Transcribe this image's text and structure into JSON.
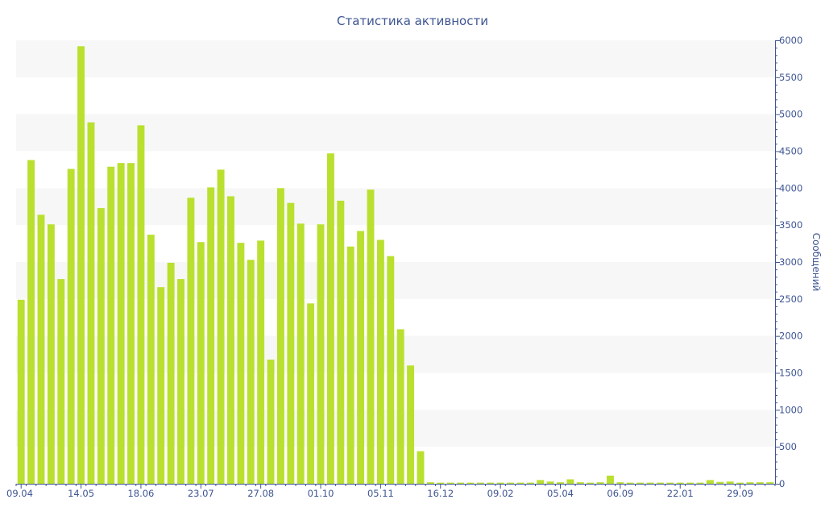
{
  "chart_data": {
    "type": "bar",
    "title": "Статистика активности",
    "ylabel": "Сообщений",
    "xlabel": "",
    "ylim": [
      0,
      6000
    ],
    "y_ticks": [
      0,
      500,
      1000,
      1500,
      2000,
      2500,
      3000,
      3500,
      4000,
      4500,
      5000,
      5500,
      6000
    ],
    "grid": true,
    "y_axis_side": "right",
    "bar_color": "#b9e02f",
    "band_color": "#f7f7f7",
    "text_color": "#3e5593",
    "axis_color": "#3e5593",
    "x_labels": [
      {
        "index": 0,
        "label": "09.04"
      },
      {
        "index": 6,
        "label": "14.05"
      },
      {
        "index": 12,
        "label": "18.06"
      },
      {
        "index": 18,
        "label": "23.07"
      },
      {
        "index": 24,
        "label": "27.08"
      },
      {
        "index": 30,
        "label": "01.10"
      },
      {
        "index": 36,
        "label": "05.11"
      },
      {
        "index": 42,
        "label": "16.12"
      },
      {
        "index": 48,
        "label": "09.02"
      },
      {
        "index": 54,
        "label": "05.04"
      },
      {
        "index": 60,
        "label": "06.09"
      },
      {
        "index": 66,
        "label": "22.01"
      },
      {
        "index": 72,
        "label": "29.09"
      }
    ],
    "values": [
      2490,
      4380,
      3640,
      3510,
      2770,
      4260,
      5920,
      4890,
      3730,
      4290,
      4340,
      4340,
      4850,
      3370,
      2660,
      2990,
      2770,
      3870,
      3270,
      4010,
      4250,
      3890,
      3260,
      3030,
      3290,
      1680,
      4000,
      3800,
      3520,
      2440,
      3510,
      4470,
      3830,
      3210,
      3420,
      3980,
      3300,
      3080,
      2090,
      1600,
      440,
      20,
      15,
      15,
      15,
      15,
      15,
      15,
      15,
      15,
      15,
      15,
      50,
      30,
      20,
      60,
      20,
      15,
      20,
      110,
      20,
      15,
      15,
      15,
      15,
      15,
      15,
      15,
      15,
      50,
      25,
      30,
      15,
      20,
      20,
      20
    ]
  }
}
